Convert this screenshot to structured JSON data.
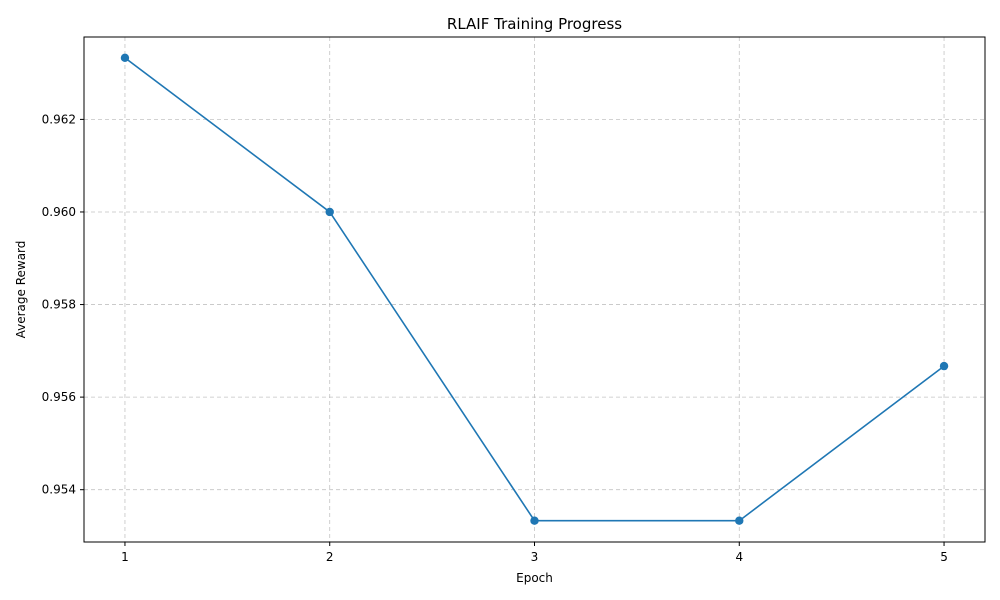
{
  "chart_data": {
    "type": "line",
    "title": "RLAIF Training Progress",
    "xlabel": "Epoch",
    "ylabel": "Average Reward",
    "x": [
      1,
      2,
      3,
      4,
      5
    ],
    "x_ticks": [
      "1",
      "2",
      "3",
      "4",
      "5"
    ],
    "y_ticks": [
      "0.954",
      "0.956",
      "0.958",
      "0.960",
      "0.962"
    ],
    "y_tick_values": [
      0.954,
      0.956,
      0.958,
      0.96,
      0.962
    ],
    "xlim": [
      0.8,
      5.2
    ],
    "ylim": [
      0.95287,
      0.96378
    ],
    "grid": true,
    "series": [
      {
        "values": [
          0.96333,
          0.96,
          0.95333,
          0.95333,
          0.95667
        ],
        "color": "#1f77b4",
        "marker": "circle"
      }
    ]
  }
}
